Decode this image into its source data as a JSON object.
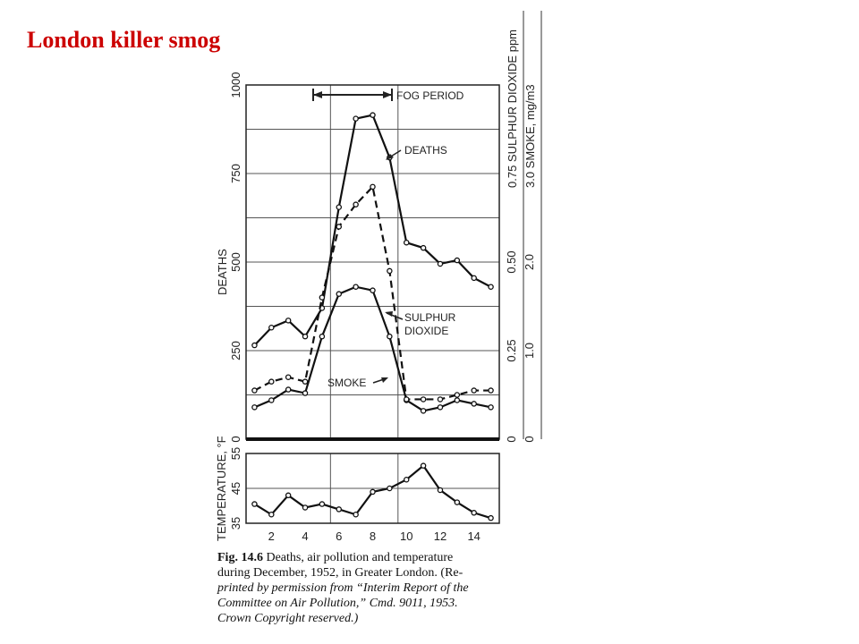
{
  "slide": {
    "title": "London killer smog"
  },
  "chart_data": [
    {
      "type": "line",
      "x": [
        1,
        2,
        3,
        4,
        5,
        6,
        7,
        8,
        9,
        10,
        11,
        12,
        13,
        14,
        15
      ],
      "xlim": [
        0.5,
        15.5
      ],
      "left_axis": {
        "label": "DEATHS",
        "ticks": [
          "1000",
          "750",
          "500",
          "250",
          "0"
        ],
        "ylim": [
          0,
          1000
        ]
      },
      "right_axis_so2": {
        "label": "0.75 SULPHUR DIOXIDE ppm",
        "ticks": [
          "0.75",
          "0.50",
          "0.25",
          "0"
        ],
        "ylim": [
          0,
          1.0
        ]
      },
      "right_axis_smoke": {
        "label": "3.0 SMOKE, mg/m3",
        "ticks": [
          "3.0",
          "2.0",
          "1.0",
          "0"
        ],
        "ylim": [
          0,
          4.0
        ]
      },
      "series": [
        {
          "name": "DEATHS",
          "style": "solid",
          "unit": "deaths",
          "values": [
            265,
            315,
            335,
            290,
            370,
            655,
            905,
            915,
            795,
            555,
            540,
            495,
            505,
            455,
            430
          ]
        },
        {
          "name": "SULPHUR DIOXIDE",
          "style": "solid",
          "unit": "ppm",
          "values": [
            0.09,
            0.11,
            0.14,
            0.13,
            0.29,
            0.41,
            0.43,
            0.42,
            0.29,
            0.11,
            0.08,
            0.09,
            0.11,
            0.1,
            0.09
          ]
        },
        {
          "name": "SMOKE",
          "style": "dashed",
          "unit": "mg/m3",
          "values": [
            0.55,
            0.65,
            0.7,
            0.65,
            1.6,
            2.4,
            2.65,
            2.85,
            1.9,
            0.45,
            0.45,
            0.45,
            0.5,
            0.55,
            0.55
          ]
        }
      ],
      "annotations": {
        "fog_period": {
          "label": "FOG PERIOD",
          "from": 4.9,
          "to": 9.1
        },
        "deaths": "DEATHS",
        "so2_line1": "SULPHUR",
        "so2_line2": "DIOXIDE",
        "smoke": "SMOKE"
      },
      "grid": true
    },
    {
      "type": "line",
      "x": [
        1,
        2,
        3,
        4,
        5,
        6,
        7,
        8,
        9,
        10,
        11,
        12,
        13,
        14,
        15
      ],
      "xlabel_ticks": [
        "2",
        "4",
        "6",
        "8",
        "10",
        "12",
        "14"
      ],
      "ylabel": "TEMPERATURE, °F",
      "ylim": [
        35,
        55
      ],
      "ticks": [
        "55",
        "45",
        "35"
      ],
      "series": [
        {
          "name": "TEMPERATURE",
          "unit": "°F",
          "values": [
            40.5,
            37.5,
            43,
            39.5,
            40.5,
            39,
            37.5,
            44,
            45,
            47.5,
            51.5,
            44.5,
            41,
            38,
            36.5
          ]
        }
      ],
      "grid": true
    }
  ],
  "caption": {
    "label": "Fig. 14.6",
    "line1": " Deaths, air pollution and temperature",
    "line2": "during December, 1952, in Greater London. (Re-",
    "line3": "printed by permission from “Interim Report of the",
    "line4": "Committee on Air Pollution,” Cmd. 9011, 1953.",
    "line5": "Crown Copyright reserved.)"
  }
}
